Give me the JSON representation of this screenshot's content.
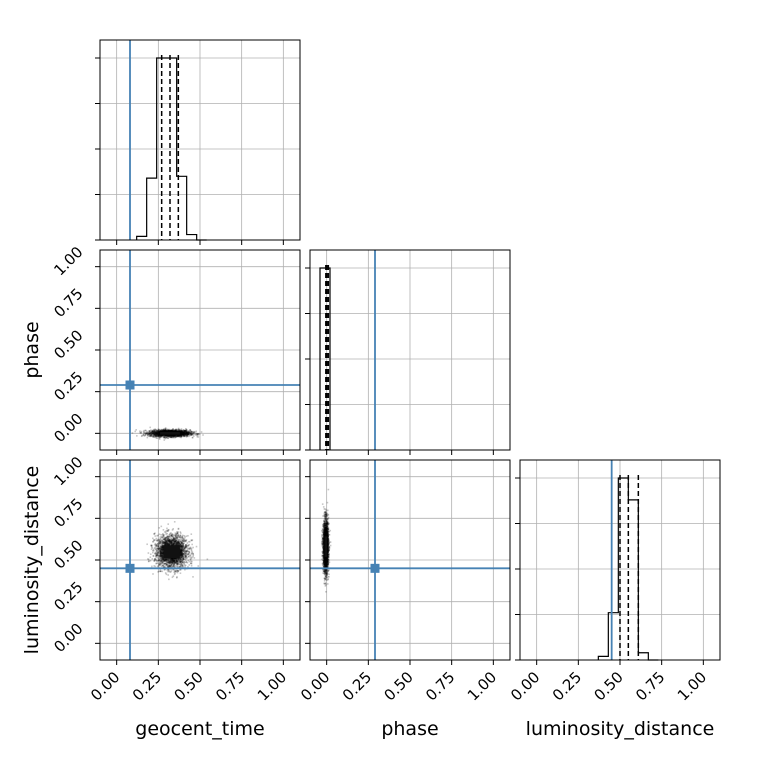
{
  "chart_data": {
    "type": "corner",
    "parameters": [
      "geocent_time",
      "phase",
      "luminosity_distance"
    ],
    "truth_values": {
      "geocent_time": 0.08,
      "phase": 0.29,
      "luminosity_distance": 0.45
    },
    "truth_color": "#4682b4",
    "grid": true,
    "marginals": [
      {
        "parameter": "geocent_time",
        "xlim": [
          -0.1,
          1.1
        ],
        "bin_edges": [
          0.12,
          0.18,
          0.24,
          0.3,
          0.36,
          0.42,
          0.48,
          0.54
        ],
        "counts": [
          2,
          34,
          100,
          100,
          35,
          3,
          0
        ],
        "quantiles": [
          0.27,
          0.32,
          0.37
        ]
      },
      {
        "parameter": "phase",
        "xlim": [
          -0.1,
          1.1
        ],
        "bin_edges": [
          -0.04,
          -0.01,
          0.02
        ],
        "counts": [
          100,
          100
        ],
        "quantiles": [
          -0.005,
          0.002,
          0.01
        ]
      },
      {
        "parameter": "luminosity_distance",
        "xlim": [
          -0.1,
          1.1
        ],
        "bin_edges": [
          0.37,
          0.43,
          0.49,
          0.55,
          0.61,
          0.67,
          0.73
        ],
        "counts": [
          2,
          26,
          100,
          88,
          4,
          0
        ],
        "quantiles": [
          0.5,
          0.55,
          0.61
        ]
      }
    ],
    "joint": [
      {
        "x": "geocent_time",
        "y": "phase",
        "center": [
          0.32,
          0.0
        ],
        "spread": [
          0.06,
          0.01
        ]
      },
      {
        "x": "geocent_time",
        "y": "luminosity_distance",
        "center": [
          0.33,
          0.55
        ],
        "spread": [
          0.05,
          0.05
        ]
      },
      {
        "x": "phase",
        "y": "luminosity_distance",
        "center": [
          -0.005,
          0.58
        ],
        "spread": [
          0.008,
          0.08
        ]
      }
    ],
    "axis_labels": {
      "left": [
        "phase",
        "luminosity_distance"
      ],
      "bottom": [
        "geocent_time",
        "phase",
        "luminosity_distance"
      ]
    },
    "tick_labels": [
      "0.00",
      "0.25",
      "0.50",
      "0.75",
      "1.00"
    ],
    "tick_values": [
      0.0,
      0.25,
      0.5,
      0.75,
      1.0
    ]
  }
}
